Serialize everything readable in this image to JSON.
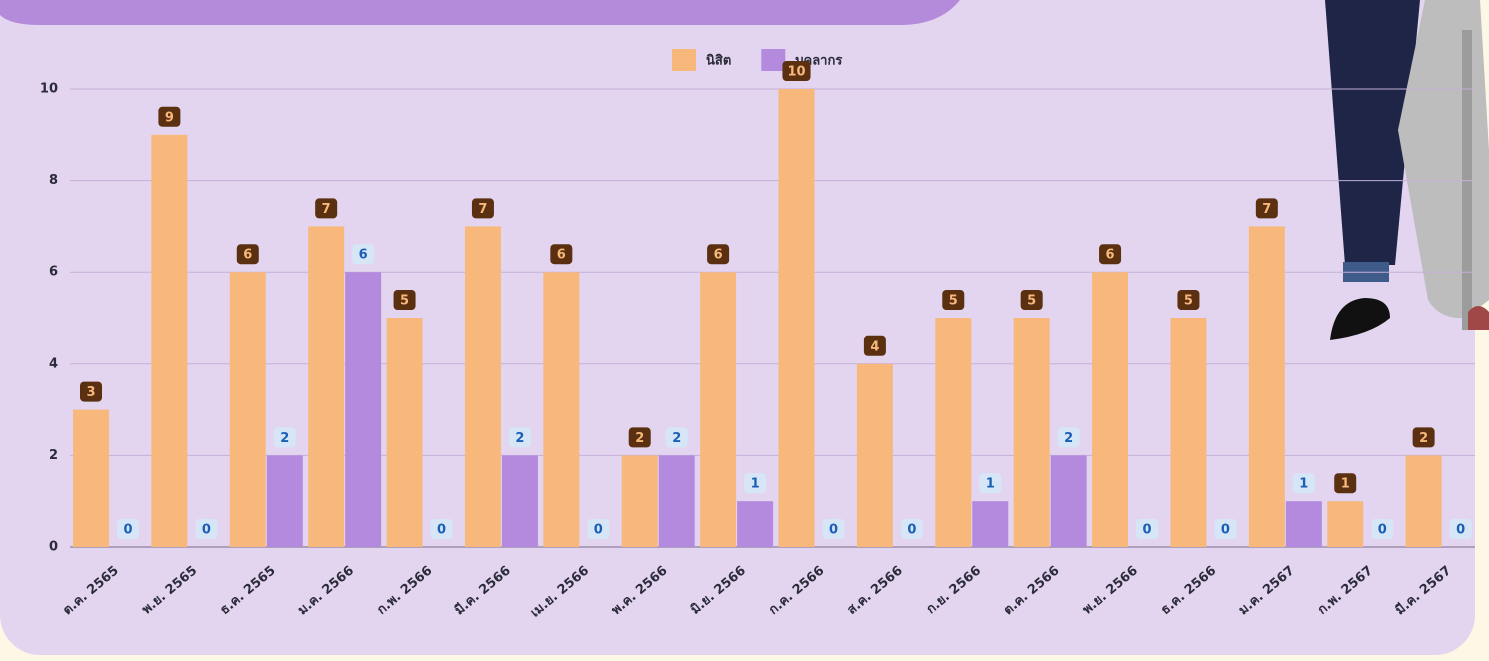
{
  "chart_data": {
    "type": "bar",
    "categories": [
      "ต.ค. 2565",
      "พ.ย. 2565",
      "ธ.ค. 2565",
      "ม.ค. 2566",
      "ก.พ. 2566",
      "มี.ค. 2566",
      "เม.ย. 2566",
      "พ.ค. 2566",
      "มิ.ย. 2566",
      "ก.ค. 2566",
      "ส.ค. 2566",
      "ก.ย. 2566",
      "ต.ค. 2566",
      "พ.ย. 2566",
      "ธ.ค. 2566",
      "ม.ค. 2567",
      "ก.พ. 2567",
      "มี.ค. 2567"
    ],
    "series": [
      {
        "name": "นิสิต",
        "color": "#f8b87c",
        "values": [
          3,
          9,
          6,
          7,
          5,
          7,
          6,
          2,
          6,
          10,
          4,
          5,
          5,
          6,
          5,
          7,
          1,
          2
        ]
      },
      {
        "name": "บุคลากร",
        "color": "#b48ade",
        "values": [
          0,
          0,
          2,
          6,
          0,
          2,
          0,
          2,
          1,
          0,
          0,
          1,
          2,
          0,
          0,
          1,
          0,
          0
        ]
      }
    ],
    "ylim": [
      0,
      10
    ],
    "yticks": [
      0,
      2,
      4,
      6,
      8,
      10
    ],
    "grid": true,
    "legend": "top"
  }
}
